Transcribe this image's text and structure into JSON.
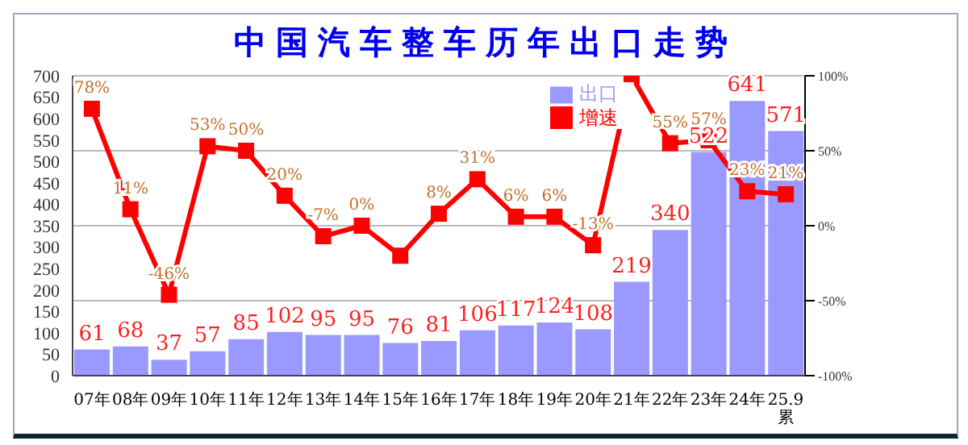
{
  "chart_data": {
    "type": "bar",
    "title": "中国汽车整车历年出口走势",
    "categories": [
      "07年",
      "08年",
      "09年",
      "10年",
      "11年",
      "12年",
      "13年",
      "14年",
      "15年",
      "16年",
      "17年",
      "18年",
      "19年",
      "20年",
      "21年",
      "22年",
      "23年",
      "24年",
      "25.9累"
    ],
    "series": [
      {
        "name": "出口",
        "color": "#9999ff",
        "values": [
          61,
          68,
          37,
          57,
          85,
          102,
          95,
          95,
          76,
          81,
          106,
          117,
          124,
          108,
          219,
          340,
          522,
          641,
          571
        ],
        "value_labels": [
          "61",
          "68",
          "37",
          "57",
          "85",
          "102",
          "95",
          "95",
          "76",
          "81",
          "106",
          "117",
          "124",
          "108",
          "219",
          "340",
          "522",
          "641",
          "571"
        ]
      },
      {
        "name": "增速",
        "type": "line",
        "axis": "y2",
        "color": "#ff0000",
        "marker": "square",
        "values": [
          78,
          11,
          -46,
          53,
          50,
          20,
          -7,
          0,
          -20,
          8,
          31,
          6,
          6,
          -13,
          100,
          55,
          57,
          23,
          21
        ],
        "value_labels": [
          "78%",
          "11%",
          "-46%",
          "53%",
          "50%",
          "20%",
          "-7%",
          "0%",
          null,
          "8%",
          "31%",
          "6%",
          "6%",
          "-13%",
          null,
          "55%",
          "57%",
          "23%",
          "21%"
        ]
      }
    ],
    "ylim": [
      0,
      700
    ],
    "yticks": [
      0,
      50,
      100,
      150,
      200,
      250,
      300,
      350,
      400,
      450,
      500,
      550,
      600,
      650,
      700
    ],
    "y2lim": [
      -100,
      100
    ],
    "y2ticks": [
      {
        "value": -100,
        "label": "-100%"
      },
      {
        "value": -50,
        "label": "-50%"
      },
      {
        "value": 0,
        "label": "0%"
      },
      {
        "value": 50,
        "label": "50%"
      },
      {
        "value": 100,
        "label": "100%"
      }
    ],
    "grid": "y2",
    "legend": "top right"
  }
}
